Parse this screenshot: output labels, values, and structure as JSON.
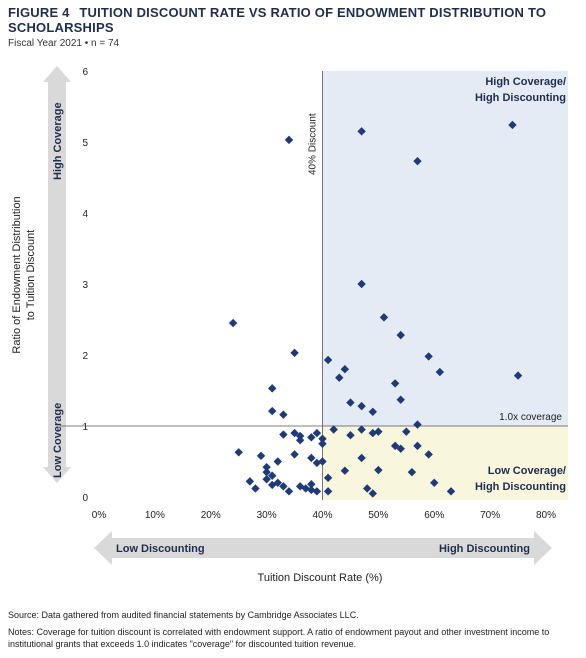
{
  "header": {
    "figure_label": "FIGURE 4",
    "title": "TUITION DISCOUNT RATE VS RATIO OF ENDOWMENT DISTRIBUTION TO SCHOLARSHIPS",
    "subtitle": "Fiscal Year 2021 • n = 74"
  },
  "colors": {
    "point": "#1e3a78",
    "high_region": "#e4ebf4",
    "low_region": "#f8f6dc",
    "arrow": "#d9d9d9",
    "title": "#1f2d4e"
  },
  "chart_data": {
    "type": "scatter",
    "xlabel": "Tuition Discount Rate (%)",
    "ylabel": "Ratio of Endowment Distribution to Tuition Discount",
    "xlim": [
      0,
      80
    ],
    "ylim": [
      0,
      6
    ],
    "x_ticks": [
      "0%",
      "10%",
      "20%",
      "30%",
      "40%",
      "50%",
      "60%",
      "70%",
      "80%"
    ],
    "y_ticks": [
      "0",
      "1",
      "2",
      "3",
      "4",
      "5",
      "6"
    ],
    "grid": false,
    "reference_lines": {
      "vertical": {
        "x": 40,
        "label": "40% Discount"
      },
      "horizontal": {
        "y": 1,
        "label": "1.0x coverage"
      }
    },
    "regions": [
      {
        "label": "High Coverage/ High Discounting",
        "x": [
          40,
          80
        ],
        "y": [
          1,
          6
        ]
      },
      {
        "label": "Low Coverage/ High Discounting",
        "x": [
          40,
          80
        ],
        "y": [
          0,
          1
        ]
      }
    ],
    "arrows": {
      "x_left": "Low Discounting",
      "x_right": "High Discounting",
      "y_top": "High Coverage",
      "y_bottom": "Low Coverage"
    },
    "points": [
      [
        34,
        5.03
      ],
      [
        47,
        5.15
      ],
      [
        74,
        5.24
      ],
      [
        57,
        4.73
      ],
      [
        47,
        3.0
      ],
      [
        24,
        2.45
      ],
      [
        51,
        2.53
      ],
      [
        54,
        2.28
      ],
      [
        35,
        2.03
      ],
      [
        41,
        1.93
      ],
      [
        59,
        1.98
      ],
      [
        44,
        1.8
      ],
      [
        61,
        1.76
      ],
      [
        43,
        1.68
      ],
      [
        75,
        1.71
      ],
      [
        31,
        1.53
      ],
      [
        53,
        1.6
      ],
      [
        54,
        1.37
      ],
      [
        45,
        1.33
      ],
      [
        31,
        1.21
      ],
      [
        33,
        1.16
      ],
      [
        47,
        1.28
      ],
      [
        49,
        1.2
      ],
      [
        57,
        1.02
      ],
      [
        33,
        0.88
      ],
      [
        35,
        0.9
      ],
      [
        36,
        0.8
      ],
      [
        36,
        0.86
      ],
      [
        38,
        0.84
      ],
      [
        39,
        0.9
      ],
      [
        40,
        0.82
      ],
      [
        40,
        0.75
      ],
      [
        42,
        0.95
      ],
      [
        45,
        0.87
      ],
      [
        47,
        0.95
      ],
      [
        49,
        0.9
      ],
      [
        50,
        0.92
      ],
      [
        53,
        0.72
      ],
      [
        55,
        0.92
      ],
      [
        57,
        0.72
      ],
      [
        25,
        0.63
      ],
      [
        29,
        0.58
      ],
      [
        30,
        0.42
      ],
      [
        30,
        0.35
      ],
      [
        31,
        0.3
      ],
      [
        32,
        0.5
      ],
      [
        35,
        0.6
      ],
      [
        38,
        0.55
      ],
      [
        39,
        0.48
      ],
      [
        40,
        0.5
      ],
      [
        41,
        0.27
      ],
      [
        44,
        0.37
      ],
      [
        47,
        0.55
      ],
      [
        50,
        0.38
      ],
      [
        54,
        0.68
      ],
      [
        56,
        0.35
      ],
      [
        59,
        0.6
      ],
      [
        60,
        0.2
      ],
      [
        27,
        0.22
      ],
      [
        28,
        0.12
      ],
      [
        30,
        0.25
      ],
      [
        31,
        0.17
      ],
      [
        32,
        0.2
      ],
      [
        33,
        0.15
      ],
      [
        34,
        0.08
      ],
      [
        36,
        0.15
      ],
      [
        37,
        0.12
      ],
      [
        38,
        0.1
      ],
      [
        38,
        0.18
      ],
      [
        39,
        0.08
      ],
      [
        41,
        0.08
      ],
      [
        48,
        0.12
      ],
      [
        49,
        0.05
      ],
      [
        63,
        0.08
      ]
    ]
  },
  "notes": {
    "source": "Source: Data gathered from audited financial statements by Cambridge Associates LLC.",
    "notes": "Notes: Coverage for tuition discount is correlated with endowment support. A ratio of endowment payout and other investment income to institutional grants that exceeds 1.0 indicates \"coverage\" for discounted tuition revenue."
  }
}
